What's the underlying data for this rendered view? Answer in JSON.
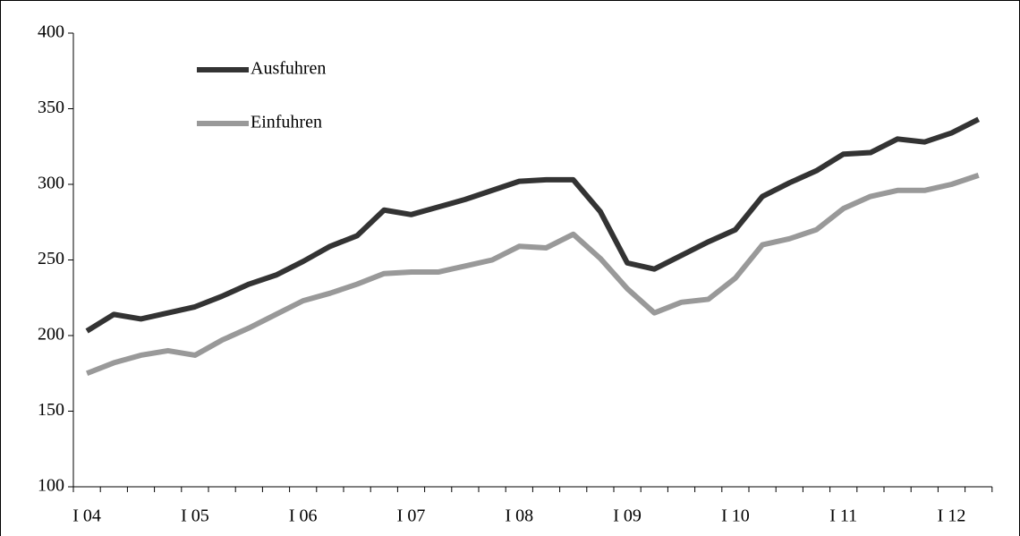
{
  "chart_data": {
    "type": "line",
    "categories": [
      "I 04",
      null,
      null,
      null,
      "I 05",
      null,
      null,
      null,
      "I 06",
      null,
      null,
      null,
      "I 07",
      null,
      null,
      null,
      "I 08",
      null,
      null,
      null,
      "I 09",
      null,
      null,
      null,
      "I 10",
      null,
      null,
      null,
      "I 11",
      null,
      null,
      null,
      "I 12",
      null
    ],
    "series": [
      {
        "name": "Ausfuhren",
        "color": "#333333",
        "values": [
          203,
          214,
          211,
          215,
          219,
          226,
          234,
          240,
          249,
          259,
          266,
          283,
          280,
          285,
          290,
          296,
          302,
          303,
          303,
          282,
          248,
          244,
          253,
          262,
          270,
          292,
          301,
          309,
          320,
          321,
          330,
          328,
          334,
          343
        ]
      },
      {
        "name": "Einfuhren",
        "color": "#999999",
        "values": [
          175,
          182,
          187,
          190,
          187,
          197,
          205,
          214,
          223,
          228,
          234,
          241,
          242,
          242,
          246,
          250,
          259,
          258,
          267,
          251,
          231,
          215,
          222,
          224,
          238,
          260,
          264,
          270,
          284,
          292,
          296,
          296,
          300,
          306
        ]
      }
    ],
    "ylim": [
      100,
      400
    ],
    "yticks": [
      100,
      150,
      200,
      250,
      300,
      350,
      400
    ],
    "grid": false,
    "legend": "upper left"
  }
}
